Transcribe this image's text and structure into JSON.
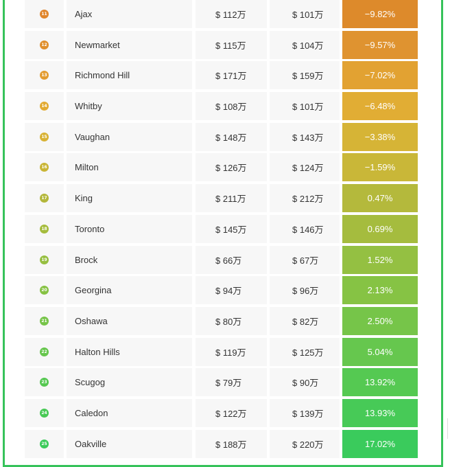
{
  "rows": [
    {
      "rank": "11",
      "name": "Ajax",
      "price_a": "$ 112万",
      "price_b": "$ 101万",
      "change": "−9.82%",
      "badge_color": "#e0862d",
      "pct_color": "#dd8a2b"
    },
    {
      "rank": "12",
      "name": "Newmarket",
      "price_a": "$ 115万",
      "price_b": "$ 104万",
      "change": "−9.57%",
      "badge_color": "#e08f2d",
      "pct_color": "#df9330"
    },
    {
      "rank": "13",
      "name": "Richmond Hill",
      "price_a": "$ 171万",
      "price_b": "$ 159万",
      "change": "−7.02%",
      "badge_color": "#e39c31",
      "pct_color": "#e2a232"
    },
    {
      "rank": "14",
      "name": "Whitby",
      "price_a": "$ 108万",
      "price_b": "$ 101万",
      "change": "−6.48%",
      "badge_color": "#e2aa32",
      "pct_color": "#e1ad34"
    },
    {
      "rank": "15",
      "name": "Vaughan",
      "price_a": "$ 148万",
      "price_b": "$ 143万",
      "change": "−3.38%",
      "badge_color": "#d8b234",
      "pct_color": "#d6b436"
    },
    {
      "rank": "16",
      "name": "Milton",
      "price_a": "$ 126万",
      "price_b": "$ 124万",
      "change": "−1.59%",
      "badge_color": "#c9b535",
      "pct_color": "#c9b738"
    },
    {
      "rank": "17",
      "name": "King",
      "price_a": "$ 211万",
      "price_b": "$ 212万",
      "change": "0.47%",
      "badge_color": "#b3b73a",
      "pct_color": "#b4b93c"
    },
    {
      "rank": "18",
      "name": "Toronto",
      "price_a": "$ 145万",
      "price_b": "$ 146万",
      "change": "0.69%",
      "badge_color": "#a5bc3c",
      "pct_color": "#a5bc3e"
    },
    {
      "rank": "19",
      "name": "Brock",
      "price_a": "$ 66万",
      "price_b": "$ 67万",
      "change": "1.52%",
      "badge_color": "#96bf40",
      "pct_color": "#94c042"
    },
    {
      "rank": "20",
      "name": "Georgina",
      "price_a": "$ 94万",
      "price_b": "$ 96万",
      "change": "2.13%",
      "badge_color": "#86c243",
      "pct_color": "#86c344"
    },
    {
      "rank": "21",
      "name": "Oshawa",
      "price_a": "$ 80万",
      "price_b": "$ 82万",
      "change": "2.50%",
      "badge_color": "#76c448",
      "pct_color": "#76c549"
    },
    {
      "rank": "22",
      "name": "Halton Hills",
      "price_a": "$ 119万",
      "price_b": "$ 125万",
      "change": "5.04%",
      "badge_color": "#66c64c",
      "pct_color": "#66c74e"
    },
    {
      "rank": "23",
      "name": "Scugog",
      "price_a": "$ 79万",
      "price_b": "$ 90万",
      "change": "13.92%",
      "badge_color": "#56c851",
      "pct_color": "#55c952"
    },
    {
      "rank": "24",
      "name": "Caledon",
      "price_a": "$ 122万",
      "price_b": "$ 139万",
      "change": "13.93%",
      "badge_color": "#48c955",
      "pct_color": "#47ca57"
    },
    {
      "rank": "25",
      "name": "Oakville",
      "price_a": "$ 188万",
      "price_b": "$ 220万",
      "change": "17.02%",
      "badge_color": "#3ccb5a",
      "pct_color": "#3acb5c"
    }
  ]
}
